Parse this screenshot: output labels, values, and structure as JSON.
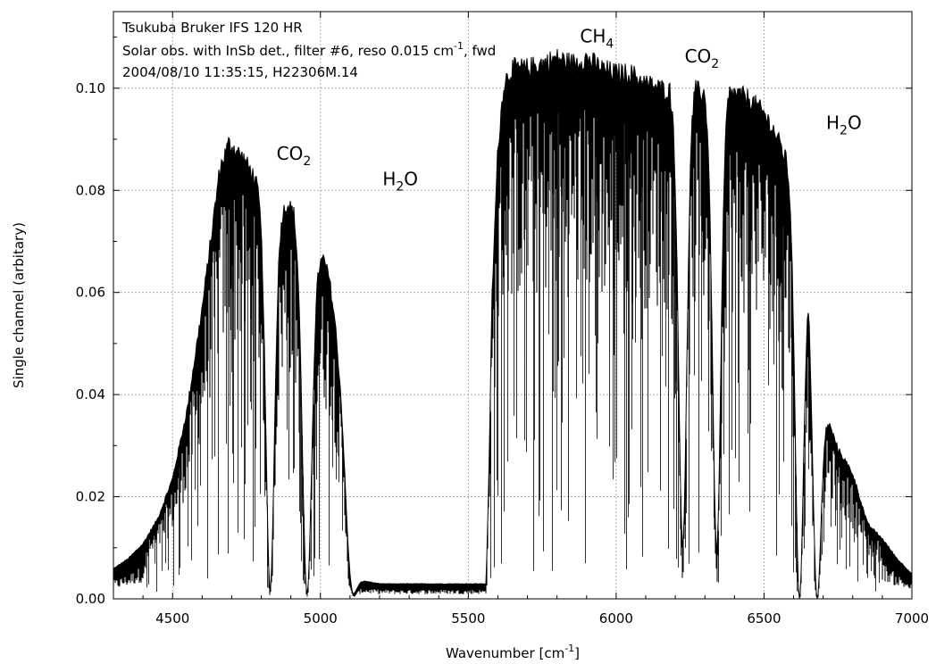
{
  "chart_data": {
    "type": "line",
    "title_lines": [
      "Tsukuba Bruker IFS 120 HR",
      "Solar obs. with InSb det., filter #6, reso 0.015 cm",
      "2004/08/10 11:35:15, H22306M.14"
    ],
    "title_line2_sup": "-1",
    "title_line2_suffix": ", fwd",
    "xlabel": "Wavenumber [cm",
    "xlabel_sup": "-1",
    "xlabel_suffix": "]",
    "ylabel": "Single channel (arbitary)",
    "xlim": [
      4300,
      7000
    ],
    "ylim": [
      0,
      0.115
    ],
    "x_ticks": [
      4500,
      5000,
      5500,
      6000,
      6500,
      7000
    ],
    "y_ticks": [
      "0.00",
      "0.02",
      "0.04",
      "0.06",
      "0.08",
      "0.10"
    ],
    "grid": true,
    "series": [
      {
        "envelope_upper": {
          "x": [
            4300,
            4350,
            4400,
            4450,
            4500,
            4550,
            4600,
            4630,
            4660,
            4690,
            4710,
            4740,
            4770,
            4800,
            4830,
            4850,
            4870,
            4890,
            4910,
            4930,
            4950,
            4970,
            4990,
            5010,
            5030,
            5050,
            5070,
            5090,
            5110,
            5200,
            5300,
            5400,
            5500,
            5560,
            5570,
            5580,
            5600,
            5620,
            5650,
            5700,
            5750,
            5800,
            5850,
            5900,
            5950,
            6000,
            6050,
            6100,
            6150,
            6200,
            6250,
            6300,
            6350,
            6400,
            6450,
            6500,
            6530,
            6560,
            6590,
            6620,
            6650,
            6680,
            6700,
            6720,
            6750,
            6800,
            6850,
            6900,
            6950,
            7000
          ],
          "y": [
            0.006,
            0.008,
            0.011,
            0.016,
            0.024,
            0.038,
            0.058,
            0.072,
            0.086,
            0.091,
            0.09,
            0.088,
            0.085,
            0.08,
            0.075,
            0.074,
            0.077,
            0.079,
            0.077,
            0.068,
            0.055,
            0.058,
            0.066,
            0.068,
            0.064,
            0.055,
            0.04,
            0.02,
            0.004,
            0.003,
            0.003,
            0.003,
            0.003,
            0.003,
            0.025,
            0.06,
            0.09,
            0.103,
            0.106,
            0.106,
            0.107,
            0.108,
            0.107,
            0.108,
            0.106,
            0.105,
            0.105,
            0.103,
            0.102,
            0.101,
            0.102,
            0.101,
            0.101,
            0.101,
            0.1,
            0.097,
            0.094,
            0.09,
            0.085,
            0.076,
            0.065,
            0.05,
            0.04,
            0.035,
            0.03,
            0.025,
            0.015,
            0.012,
            0.008,
            0.005
          ]
        },
        "deep_features": [
          {
            "x": 4830,
            "y": 0.002
          },
          {
            "x": 4955,
            "y": 0.001
          },
          {
            "x": 5110,
            "y": 0.001
          },
          {
            "x": 6225,
            "y": 0.011
          },
          {
            "x": 6340,
            "y": 0.01
          },
          {
            "x": 6620,
            "y": 0.0
          },
          {
            "x": 6680,
            "y": 0.0
          }
        ]
      }
    ],
    "annotations": [
      {
        "x": 4910,
        "y": 0.086,
        "text": "CO",
        "sub": "2"
      },
      {
        "x": 5270,
        "y": 0.081,
        "text": "H",
        "sub": "2",
        "suffix": "O"
      },
      {
        "x": 5935,
        "y": 0.109,
        "text": "CH",
        "sub": "4"
      },
      {
        "x": 6290,
        "y": 0.105,
        "text": "CO",
        "sub": "2"
      },
      {
        "x": 6770,
        "y": 0.092,
        "text": "H",
        "sub": "2",
        "suffix": "O"
      }
    ]
  }
}
